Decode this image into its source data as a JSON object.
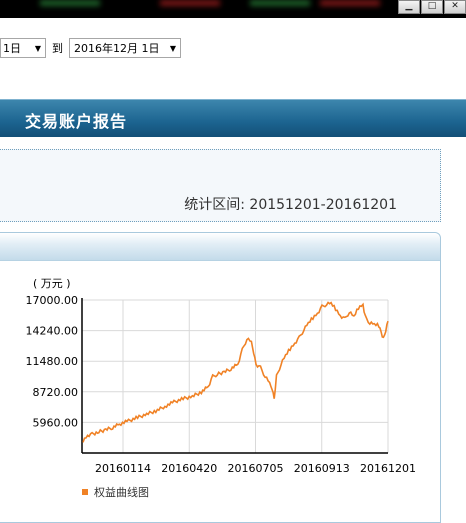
{
  "date_range": {
    "start_value": "1日",
    "to_label": "到",
    "end_value": "2016年12月 1日"
  },
  "report": {
    "title": "交易账户报告",
    "period_label": "统计区间:",
    "period_value": "20151201-20161201"
  },
  "chart_data": {
    "type": "line",
    "unit_label": "( 万元 )",
    "y_ticks": [
      "17000.00",
      "14240.00",
      "11480.00",
      "8720.00",
      "5960.00"
    ],
    "x_ticks": [
      "20160114",
      "20160420",
      "20160705",
      "20160913",
      "20161201"
    ],
    "ylim": [
      3200,
      17000
    ],
    "grid": true,
    "series": [
      {
        "name": "权益曲线图",
        "color": "#f08226",
        "points": [
          [
            0,
            4300
          ],
          [
            2,
            4800
          ],
          [
            4,
            4900
          ],
          [
            7,
            5100
          ],
          [
            10,
            5300
          ],
          [
            13,
            5500
          ],
          [
            16,
            5800
          ],
          [
            20,
            6100
          ],
          [
            24,
            6400
          ],
          [
            28,
            6700
          ],
          [
            32,
            7000
          ],
          [
            36,
            7400
          ],
          [
            40,
            7800
          ],
          [
            44,
            8100
          ],
          [
            48,
            8300
          ],
          [
            52,
            8700
          ],
          [
            55,
            9200
          ],
          [
            57,
            10100
          ],
          [
            59,
            10300
          ],
          [
            62,
            10500
          ],
          [
            65,
            10800
          ],
          [
            68,
            11200
          ],
          [
            70,
            12500
          ],
          [
            72,
            13500
          ],
          [
            74,
            13200
          ],
          [
            75,
            12300
          ],
          [
            76,
            11200
          ],
          [
            78,
            10900
          ],
          [
            80,
            10100
          ],
          [
            82,
            9500
          ],
          [
            83,
            9100
          ],
          [
            84,
            8100
          ],
          [
            85,
            10100
          ],
          [
            87,
            11200
          ],
          [
            89,
            12000
          ],
          [
            91,
            12600
          ],
          [
            93,
            13100
          ],
          [
            95,
            13600
          ],
          [
            97,
            14300
          ],
          [
            99,
            14900
          ],
          [
            101,
            15400
          ],
          [
            103,
            15800
          ],
          [
            105,
            16400
          ],
          [
            107,
            16600
          ],
          [
            109,
            16700
          ],
          [
            111,
            16200
          ],
          [
            113,
            15600
          ],
          [
            115,
            15300
          ],
          [
            117,
            15900
          ],
          [
            119,
            15500
          ],
          [
            121,
            16300
          ],
          [
            123,
            16600
          ],
          [
            124,
            15500
          ],
          [
            126,
            14900
          ],
          [
            128,
            14800
          ],
          [
            130,
            14700
          ],
          [
            131,
            14100
          ],
          [
            132,
            13500
          ],
          [
            133,
            14200
          ],
          [
            134,
            15100
          ]
        ],
        "x_max": 134
      }
    ],
    "legend_position": "bottom-left"
  }
}
